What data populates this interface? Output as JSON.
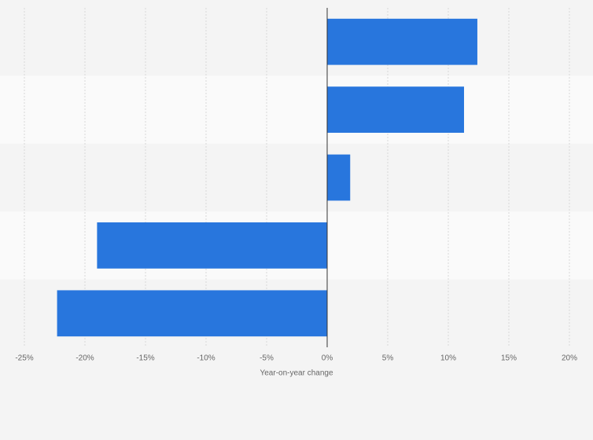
{
  "chart_data": {
    "type": "bar",
    "orientation": "horizontal",
    "categories": [
      null,
      null,
      null,
      null,
      null
    ],
    "values": [
      12.4,
      11.3,
      1.9,
      -19.0,
      -22.3
    ],
    "color": "#2876dd",
    "xlim": [
      -25,
      20
    ],
    "xticks": [
      {
        "value": -25,
        "label": "-25%"
      },
      {
        "value": -20,
        "label": "-20%"
      },
      {
        "value": -15,
        "label": "-15%"
      },
      {
        "value": -10,
        "label": "-10%"
      },
      {
        "value": -5,
        "label": "-5%"
      },
      {
        "value": 0,
        "label": "0%"
      },
      {
        "value": 5,
        "label": "5%"
      },
      {
        "value": 10,
        "label": "10%"
      },
      {
        "value": 15,
        "label": "15%"
      },
      {
        "value": 20,
        "label": "20%"
      }
    ],
    "xlabel": "Year-on-year change",
    "grid": true
  }
}
